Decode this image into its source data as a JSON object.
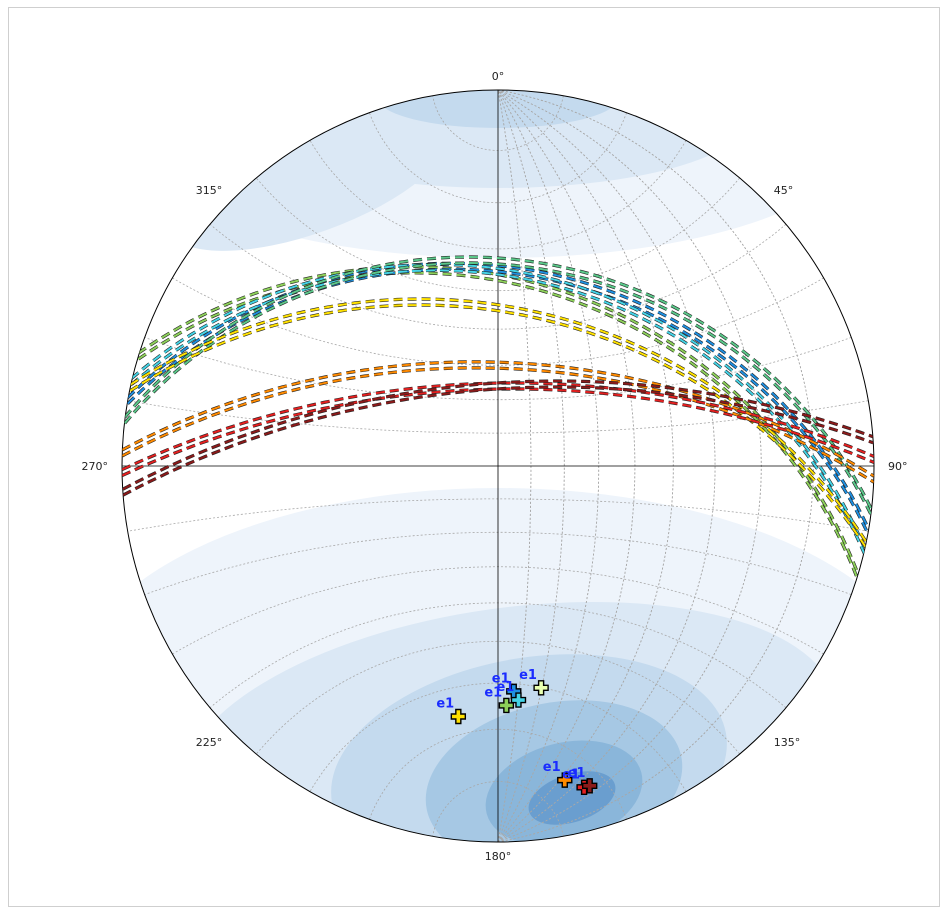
{
  "stereonet": {
    "direction_labels": [
      {
        "text": "0°",
        "azimuth": 0
      },
      {
        "text": "45°",
        "azimuth": 45
      },
      {
        "text": "90°",
        "azimuth": 90
      },
      {
        "text": "135°",
        "azimuth": 135
      },
      {
        "text": "180°",
        "azimuth": 180
      },
      {
        "text": "225°",
        "azimuth": 225
      },
      {
        "text": "270°",
        "azimuth": 270
      },
      {
        "text": "315°",
        "azimuth": 315
      }
    ],
    "colors": {
      "outline": "#000000",
      "grid": "#a8a8a8",
      "density_levels": [
        "#eef4fb",
        "#dbe8f5",
        "#c4daee",
        "#a6c8e4",
        "#8ab6da",
        "#6a9ecf"
      ]
    },
    "planes": [
      {
        "color": "#8dd05a",
        "strike": 287,
        "dip": 38
      },
      {
        "color": "#1f8fe0",
        "strike": 280,
        "dip": 35
      },
      {
        "color": "#44d3e6",
        "strike": 283,
        "dip": 36
      },
      {
        "color": "#5bc88a",
        "strike": 277,
        "dip": 33
      },
      {
        "color": "#ffe100",
        "strike": 282,
        "dip": 45
      },
      {
        "color": "#ff8a00",
        "strike": 272,
        "dip": 60
      },
      {
        "color": "#e42020",
        "strike": 269,
        "dip": 66
      },
      {
        "color": "#8b1a1a",
        "strike": 266,
        "dip": 66
      }
    ],
    "poles": [
      {
        "label": "e1",
        "color": "#8dd05a",
        "trend": 178,
        "plunge": 25
      },
      {
        "label": "e1",
        "color": "#1f8fe0",
        "trend": 176,
        "plunge": 28
      },
      {
        "label": "e1",
        "color": "#44d3e6",
        "trend": 175,
        "plunge": 26
      },
      {
        "label": "e1",
        "color": "#e8ffb0",
        "trend": 169,
        "plunge": 28
      },
      {
        "label": "e1",
        "color": "#ffe100",
        "trend": 189,
        "plunge": 22
      },
      {
        "label": "e1",
        "color": "#ff8a00",
        "trend": 168,
        "plunge": 9
      },
      {
        "label": "e1",
        "color": "#e42020",
        "trend": 165,
        "plunge": 7
      },
      {
        "label": "e1",
        "color": "#8b1a1a",
        "trend": 164,
        "plunge": 7
      }
    ]
  }
}
